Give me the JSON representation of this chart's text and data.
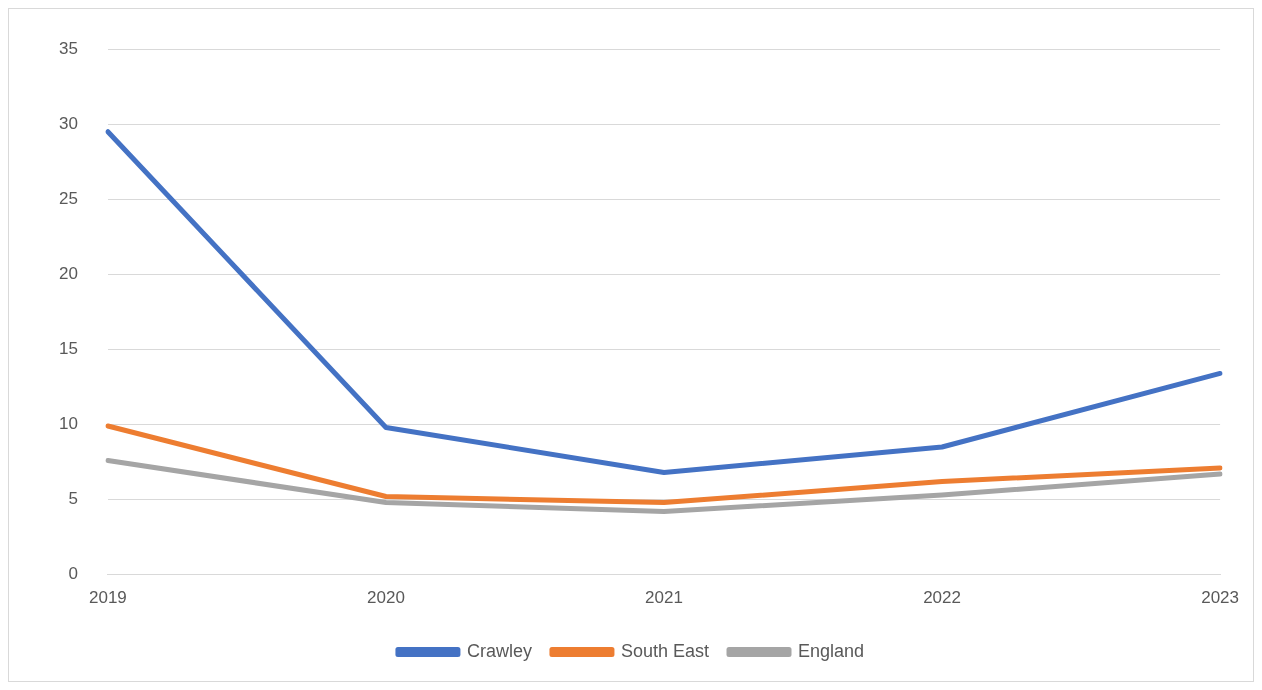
{
  "chart_data": {
    "type": "line",
    "categories": [
      "2019",
      "2020",
      "2021",
      "2022",
      "2023"
    ],
    "series": [
      {
        "name": "Crawley",
        "color": "#4472c4",
        "values": [
          29.5,
          9.8,
          6.8,
          8.5,
          13.4
        ]
      },
      {
        "name": "South East",
        "color": "#ed7d31",
        "values": [
          9.9,
          5.2,
          4.8,
          6.2,
          7.1
        ]
      },
      {
        "name": "England",
        "color": "#a5a5a5",
        "values": [
          7.6,
          4.8,
          4.2,
          5.3,
          6.7
        ]
      }
    ],
    "ylim": [
      0,
      35
    ],
    "yticks": [
      0,
      5,
      10,
      15,
      20,
      25,
      30,
      35
    ],
    "grid": "y",
    "legend": "bottom",
    "marker": "none",
    "line_style": "solid"
  }
}
